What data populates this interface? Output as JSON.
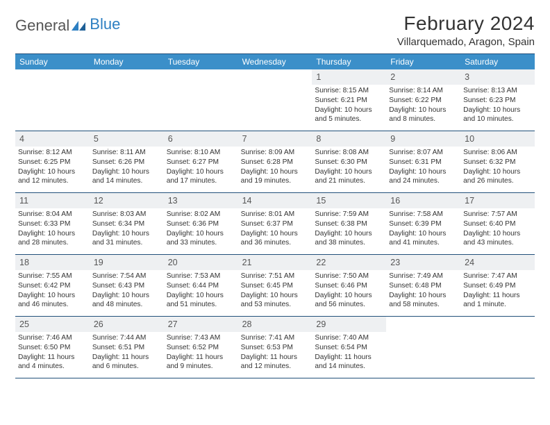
{
  "brand": {
    "part1": "General",
    "part2": "Blue"
  },
  "title": "February 2024",
  "location": "Villarquemado, Aragon, Spain",
  "colors": {
    "header_bg": "#3b8fc9",
    "header_text": "#ffffff",
    "border": "#214f7a",
    "daynum_bg": "#eef0f2",
    "text": "#333333",
    "brand_gray": "#555555",
    "brand_blue": "#2d7fc2",
    "page_bg": "#ffffff"
  },
  "typography": {
    "title_size": 28,
    "location_size": 15,
    "dayhead_size": 12,
    "daynum_size": 12.5,
    "info_size": 10.2
  },
  "dayHeaders": [
    "Sunday",
    "Monday",
    "Tuesday",
    "Wednesday",
    "Thursday",
    "Friday",
    "Saturday"
  ],
  "weeks": [
    [
      {
        "day": "",
        "sunrise": "",
        "sunset": "",
        "daylight": ""
      },
      {
        "day": "",
        "sunrise": "",
        "sunset": "",
        "daylight": ""
      },
      {
        "day": "",
        "sunrise": "",
        "sunset": "",
        "daylight": ""
      },
      {
        "day": "",
        "sunrise": "",
        "sunset": "",
        "daylight": ""
      },
      {
        "day": "1",
        "sunrise": "Sunrise: 8:15 AM",
        "sunset": "Sunset: 6:21 PM",
        "daylight": "Daylight: 10 hours and 5 minutes."
      },
      {
        "day": "2",
        "sunrise": "Sunrise: 8:14 AM",
        "sunset": "Sunset: 6:22 PM",
        "daylight": "Daylight: 10 hours and 8 minutes."
      },
      {
        "day": "3",
        "sunrise": "Sunrise: 8:13 AM",
        "sunset": "Sunset: 6:23 PM",
        "daylight": "Daylight: 10 hours and 10 minutes."
      }
    ],
    [
      {
        "day": "4",
        "sunrise": "Sunrise: 8:12 AM",
        "sunset": "Sunset: 6:25 PM",
        "daylight": "Daylight: 10 hours and 12 minutes."
      },
      {
        "day": "5",
        "sunrise": "Sunrise: 8:11 AM",
        "sunset": "Sunset: 6:26 PM",
        "daylight": "Daylight: 10 hours and 14 minutes."
      },
      {
        "day": "6",
        "sunrise": "Sunrise: 8:10 AM",
        "sunset": "Sunset: 6:27 PM",
        "daylight": "Daylight: 10 hours and 17 minutes."
      },
      {
        "day": "7",
        "sunrise": "Sunrise: 8:09 AM",
        "sunset": "Sunset: 6:28 PM",
        "daylight": "Daylight: 10 hours and 19 minutes."
      },
      {
        "day": "8",
        "sunrise": "Sunrise: 8:08 AM",
        "sunset": "Sunset: 6:30 PM",
        "daylight": "Daylight: 10 hours and 21 minutes."
      },
      {
        "day": "9",
        "sunrise": "Sunrise: 8:07 AM",
        "sunset": "Sunset: 6:31 PM",
        "daylight": "Daylight: 10 hours and 24 minutes."
      },
      {
        "day": "10",
        "sunrise": "Sunrise: 8:06 AM",
        "sunset": "Sunset: 6:32 PM",
        "daylight": "Daylight: 10 hours and 26 minutes."
      }
    ],
    [
      {
        "day": "11",
        "sunrise": "Sunrise: 8:04 AM",
        "sunset": "Sunset: 6:33 PM",
        "daylight": "Daylight: 10 hours and 28 minutes."
      },
      {
        "day": "12",
        "sunrise": "Sunrise: 8:03 AM",
        "sunset": "Sunset: 6:34 PM",
        "daylight": "Daylight: 10 hours and 31 minutes."
      },
      {
        "day": "13",
        "sunrise": "Sunrise: 8:02 AM",
        "sunset": "Sunset: 6:36 PM",
        "daylight": "Daylight: 10 hours and 33 minutes."
      },
      {
        "day": "14",
        "sunrise": "Sunrise: 8:01 AM",
        "sunset": "Sunset: 6:37 PM",
        "daylight": "Daylight: 10 hours and 36 minutes."
      },
      {
        "day": "15",
        "sunrise": "Sunrise: 7:59 AM",
        "sunset": "Sunset: 6:38 PM",
        "daylight": "Daylight: 10 hours and 38 minutes."
      },
      {
        "day": "16",
        "sunrise": "Sunrise: 7:58 AM",
        "sunset": "Sunset: 6:39 PM",
        "daylight": "Daylight: 10 hours and 41 minutes."
      },
      {
        "day": "17",
        "sunrise": "Sunrise: 7:57 AM",
        "sunset": "Sunset: 6:40 PM",
        "daylight": "Daylight: 10 hours and 43 minutes."
      }
    ],
    [
      {
        "day": "18",
        "sunrise": "Sunrise: 7:55 AM",
        "sunset": "Sunset: 6:42 PM",
        "daylight": "Daylight: 10 hours and 46 minutes."
      },
      {
        "day": "19",
        "sunrise": "Sunrise: 7:54 AM",
        "sunset": "Sunset: 6:43 PM",
        "daylight": "Daylight: 10 hours and 48 minutes."
      },
      {
        "day": "20",
        "sunrise": "Sunrise: 7:53 AM",
        "sunset": "Sunset: 6:44 PM",
        "daylight": "Daylight: 10 hours and 51 minutes."
      },
      {
        "day": "21",
        "sunrise": "Sunrise: 7:51 AM",
        "sunset": "Sunset: 6:45 PM",
        "daylight": "Daylight: 10 hours and 53 minutes."
      },
      {
        "day": "22",
        "sunrise": "Sunrise: 7:50 AM",
        "sunset": "Sunset: 6:46 PM",
        "daylight": "Daylight: 10 hours and 56 minutes."
      },
      {
        "day": "23",
        "sunrise": "Sunrise: 7:49 AM",
        "sunset": "Sunset: 6:48 PM",
        "daylight": "Daylight: 10 hours and 58 minutes."
      },
      {
        "day": "24",
        "sunrise": "Sunrise: 7:47 AM",
        "sunset": "Sunset: 6:49 PM",
        "daylight": "Daylight: 11 hours and 1 minute."
      }
    ],
    [
      {
        "day": "25",
        "sunrise": "Sunrise: 7:46 AM",
        "sunset": "Sunset: 6:50 PM",
        "daylight": "Daylight: 11 hours and 4 minutes."
      },
      {
        "day": "26",
        "sunrise": "Sunrise: 7:44 AM",
        "sunset": "Sunset: 6:51 PM",
        "daylight": "Daylight: 11 hours and 6 minutes."
      },
      {
        "day": "27",
        "sunrise": "Sunrise: 7:43 AM",
        "sunset": "Sunset: 6:52 PM",
        "daylight": "Daylight: 11 hours and 9 minutes."
      },
      {
        "day": "28",
        "sunrise": "Sunrise: 7:41 AM",
        "sunset": "Sunset: 6:53 PM",
        "daylight": "Daylight: 11 hours and 12 minutes."
      },
      {
        "day": "29",
        "sunrise": "Sunrise: 7:40 AM",
        "sunset": "Sunset: 6:54 PM",
        "daylight": "Daylight: 11 hours and 14 minutes."
      },
      {
        "day": "",
        "sunrise": "",
        "sunset": "",
        "daylight": ""
      },
      {
        "day": "",
        "sunrise": "",
        "sunset": "",
        "daylight": ""
      }
    ]
  ]
}
